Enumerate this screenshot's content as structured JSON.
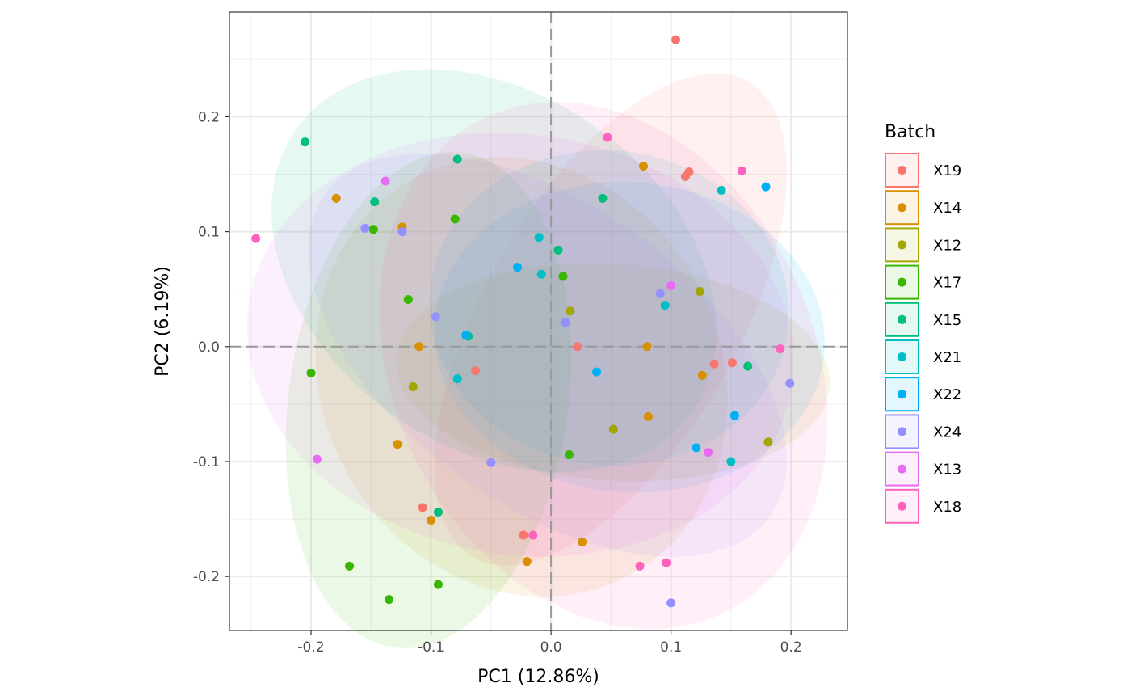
{
  "chart_data": {
    "type": "scatter",
    "xlabel": "PC1 (12.86%)",
    "ylabel": "PC2 (6.19%)",
    "xlim": [
      -0.268,
      0.247
    ],
    "ylim": [
      -0.247,
      0.291
    ],
    "x_ticks": [
      -0.2,
      -0.1,
      0.0,
      0.1,
      0.2
    ],
    "x_tick_labels": [
      "-0.2",
      "-0.1",
      "0.0",
      "0.1",
      "0.2"
    ],
    "y_ticks": [
      -0.2,
      -0.1,
      0.0,
      0.1,
      0.2
    ],
    "y_tick_labels": [
      "-0.2",
      "-0.1",
      "0.0",
      "0.1",
      "0.2"
    ],
    "grid": true,
    "reference_lines": {
      "x": 0.0,
      "y": 0.0,
      "style": "dashed"
    },
    "confidence_ellipses": true,
    "legend": {
      "title": "Batch",
      "position": "right"
    },
    "series": [
      {
        "name": "X19",
        "color": "#F8766D",
        "points": [
          [
            0.104,
            0.267
          ],
          [
            0.115,
            0.152
          ],
          [
            0.112,
            0.148
          ],
          [
            0.022,
            0.0
          ],
          [
            -0.063,
            -0.021
          ],
          [
            0.136,
            -0.015
          ],
          [
            0.151,
            -0.014
          ],
          [
            -0.107,
            -0.14
          ],
          [
            -0.023,
            -0.164
          ]
        ]
      },
      {
        "name": "X14",
        "color": "#D89000",
        "points": [
          [
            0.077,
            0.157
          ],
          [
            -0.179,
            0.129
          ],
          [
            -0.124,
            0.104
          ],
          [
            -0.11,
            0.0
          ],
          [
            0.08,
            0.0
          ],
          [
            0.126,
            -0.025
          ],
          [
            0.081,
            -0.061
          ],
          [
            -0.128,
            -0.085
          ],
          [
            -0.1,
            -0.151
          ],
          [
            -0.02,
            -0.187
          ],
          [
            0.026,
            -0.17
          ]
        ]
      },
      {
        "name": "X12",
        "color": "#A3A500",
        "points": [
          [
            0.124,
            0.048
          ],
          [
            0.016,
            0.031
          ],
          [
            -0.115,
            -0.035
          ],
          [
            0.052,
            -0.072
          ],
          [
            0.181,
            -0.083
          ]
        ]
      },
      {
        "name": "X17",
        "color": "#39B600",
        "points": [
          [
            -0.148,
            0.102
          ],
          [
            -0.08,
            0.111
          ],
          [
            -0.119,
            0.041
          ],
          [
            0.01,
            0.061
          ],
          [
            -0.2,
            -0.023
          ],
          [
            0.015,
            -0.094
          ],
          [
            -0.168,
            -0.191
          ],
          [
            -0.135,
            -0.22
          ],
          [
            -0.094,
            -0.207
          ]
        ]
      },
      {
        "name": "X15",
        "color": "#00BF7D",
        "points": [
          [
            -0.205,
            0.178
          ],
          [
            -0.078,
            0.163
          ],
          [
            -0.147,
            0.126
          ],
          [
            0.043,
            0.129
          ],
          [
            0.006,
            0.084
          ],
          [
            -0.069,
            0.009
          ],
          [
            0.164,
            -0.017
          ],
          [
            -0.094,
            -0.144
          ]
        ]
      },
      {
        "name": "X21",
        "color": "#00BFC4",
        "points": [
          [
            0.142,
            0.136
          ],
          [
            -0.01,
            0.095
          ],
          [
            -0.008,
            0.063
          ],
          [
            0.095,
            0.036
          ],
          [
            -0.078,
            -0.028
          ],
          [
            0.15,
            -0.1
          ]
        ]
      },
      {
        "name": "X22",
        "color": "#00B0F6",
        "points": [
          [
            0.179,
            0.139
          ],
          [
            -0.028,
            0.069
          ],
          [
            -0.071,
            0.01
          ],
          [
            0.038,
            -0.022
          ],
          [
            0.153,
            -0.06
          ],
          [
            0.121,
            -0.088
          ]
        ]
      },
      {
        "name": "X24",
        "color": "#9590FF",
        "points": [
          [
            -0.155,
            0.103
          ],
          [
            -0.124,
            0.1
          ],
          [
            -0.096,
            0.026
          ],
          [
            0.091,
            0.046
          ],
          [
            0.012,
            0.021
          ],
          [
            0.199,
            -0.032
          ],
          [
            -0.05,
            -0.101
          ],
          [
            0.1,
            -0.223
          ]
        ]
      },
      {
        "name": "X13",
        "color": "#E76BF3",
        "points": [
          [
            -0.138,
            0.144
          ],
          [
            0.1,
            0.053
          ],
          [
            -0.195,
            -0.098
          ],
          [
            0.131,
            -0.092
          ]
        ]
      },
      {
        "name": "X18",
        "color": "#FF62BC",
        "points": [
          [
            0.047,
            0.182
          ],
          [
            0.159,
            0.153
          ],
          [
            -0.246,
            0.094
          ],
          [
            0.191,
            -0.002
          ],
          [
            -0.015,
            -0.164
          ],
          [
            0.074,
            -0.191
          ],
          [
            0.096,
            -0.188
          ]
        ]
      }
    ]
  }
}
